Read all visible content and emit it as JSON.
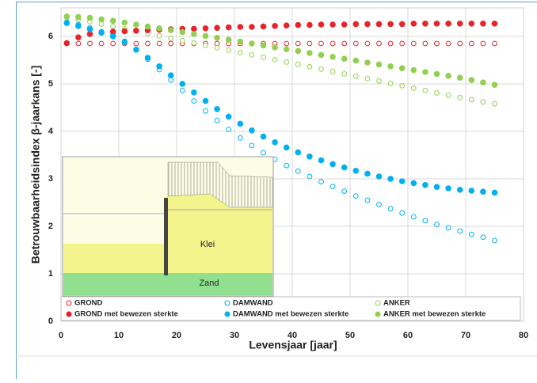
{
  "chart_data": {
    "type": "scatter",
    "x_label": "Levensjaar [jaar]",
    "y_label": "Betrouwbaarheidsindex β-jaarkans [-]",
    "x": [
      1,
      3,
      5,
      7,
      9,
      11,
      13,
      15,
      17,
      19,
      21,
      23,
      25,
      27,
      29,
      31,
      33,
      35,
      37,
      39,
      41,
      43,
      45,
      47,
      49,
      51,
      53,
      55,
      57,
      59,
      61,
      63,
      65,
      67,
      69,
      71,
      73,
      75
    ],
    "series": [
      {
        "name": "GROND",
        "color": "#e8242b",
        "marker": "open",
        "values": [
          5.85,
          5.85,
          5.85,
          5.85,
          5.85,
          5.85,
          5.85,
          5.85,
          5.85,
          5.85,
          5.85,
          5.85,
          5.85,
          5.85,
          5.85,
          5.85,
          5.85,
          5.85,
          5.85,
          5.85,
          5.85,
          5.85,
          5.85,
          5.85,
          5.85,
          5.85,
          5.85,
          5.85,
          5.85,
          5.85,
          5.85,
          5.85,
          5.85,
          5.85,
          5.85,
          5.85,
          5.85,
          5.85
        ]
      },
      {
        "name": "DAMWAND",
        "color": "#00b0f0",
        "marker": "open",
        "values": [
          6.3,
          6.25,
          6.18,
          6.1,
          6.03,
          5.9,
          5.72,
          5.52,
          5.3,
          5.08,
          4.86,
          4.64,
          4.43,
          4.23,
          4.04,
          3.86,
          3.7,
          3.55,
          3.41,
          3.28,
          3.16,
          3.05,
          2.94,
          2.84,
          2.74,
          2.64,
          2.55,
          2.46,
          2.37,
          2.28,
          2.2,
          2.12,
          2.04,
          1.97,
          1.9,
          1.83,
          1.77,
          1.7
        ]
      },
      {
        "name": "ANKER",
        "color": "#92d050",
        "marker": "open",
        "values": [
          6.4,
          6.36,
          6.31,
          6.26,
          6.21,
          6.16,
          6.11,
          6.06,
          6.01,
          5.96,
          5.91,
          5.86,
          5.81,
          5.76,
          5.71,
          5.66,
          5.61,
          5.56,
          5.51,
          5.46,
          5.41,
          5.36,
          5.31,
          5.26,
          5.21,
          5.16,
          5.11,
          5.06,
          5.01,
          4.96,
          4.91,
          4.86,
          4.81,
          4.76,
          4.71,
          4.67,
          4.62,
          4.58
        ]
      },
      {
        "name": "GROND  met bewezen sterkte",
        "color": "#e8242b",
        "marker": "filled",
        "values": [
          5.86,
          5.98,
          6.05,
          6.08,
          6.1,
          6.11,
          6.12,
          6.13,
          6.14,
          6.15,
          6.16,
          6.16,
          6.17,
          6.18,
          6.19,
          6.2,
          6.2,
          6.21,
          6.22,
          6.23,
          6.24,
          6.24,
          6.25,
          6.25,
          6.25,
          6.26,
          6.26,
          6.26,
          6.26,
          6.26,
          6.27,
          6.27,
          6.27,
          6.27,
          6.27,
          6.27,
          6.27,
          6.27
        ]
      },
      {
        "name": "DAMWAND  met bewezen sterkte",
        "color": "#00b0f0",
        "marker": "filled",
        "values": [
          6.28,
          6.22,
          6.15,
          6.08,
          6.0,
          5.88,
          5.72,
          5.55,
          5.37,
          5.18,
          5.0,
          4.82,
          4.64,
          4.47,
          4.31,
          4.16,
          4.02,
          3.89,
          3.77,
          3.66,
          3.56,
          3.47,
          3.39,
          3.31,
          3.24,
          3.17,
          3.11,
          3.05,
          3.0,
          2.95,
          2.91,
          2.87,
          2.83,
          2.8,
          2.77,
          2.75,
          2.73,
          2.71
        ]
      },
      {
        "name": "ANKER  met bewezen sterkte",
        "color": "#92d050",
        "marker": "filled",
        "values": [
          6.42,
          6.41,
          6.39,
          6.36,
          6.33,
          6.29,
          6.25,
          6.21,
          6.17,
          6.13,
          6.09,
          6.05,
          6.01,
          5.97,
          5.93,
          5.89,
          5.85,
          5.81,
          5.77,
          5.73,
          5.69,
          5.65,
          5.61,
          5.57,
          5.53,
          5.49,
          5.45,
          5.41,
          5.37,
          5.33,
          5.29,
          5.25,
          5.21,
          5.17,
          5.13,
          5.08,
          5.03,
          4.98
        ]
      }
    ],
    "xlim": [
      0,
      80
    ],
    "xticks": [
      0,
      10,
      20,
      30,
      40,
      50,
      60,
      70,
      80
    ],
    "ylim": [
      0,
      6.6
    ],
    "yticks": [
      0,
      1,
      2,
      3,
      4,
      5,
      6
    ],
    "grid": true,
    "inset_labels": [
      "Klei",
      "Zand"
    ]
  }
}
